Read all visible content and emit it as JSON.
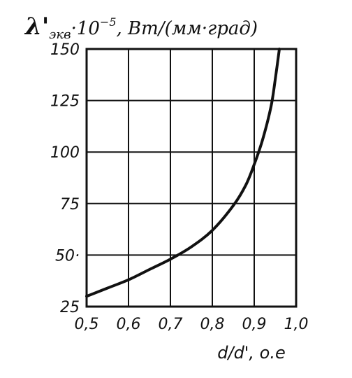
{
  "chart_data": {
    "type": "line",
    "title": {
      "symbol": "λ'",
      "subscript": "экв",
      "multiplier": "·10",
      "exponent": "−5",
      "unit": ", Вт/(мм·град)"
    },
    "xlabel": "d/d', о.е",
    "ylabel": "",
    "xlim": [
      0.5,
      1.0
    ],
    "ylim": [
      25,
      150
    ],
    "x_ticks": [
      "0,5",
      "0,6",
      "0,7",
      "0,8",
      "0,9",
      "1,0"
    ],
    "x_tick_values": [
      0.5,
      0.6,
      0.7,
      0.8,
      0.9,
      1.0
    ],
    "y_ticks": [
      "25",
      "50·",
      "75",
      "100",
      "125",
      "150"
    ],
    "y_tick_values": [
      25,
      50,
      75,
      100,
      125,
      150
    ],
    "grid": true,
    "series": [
      {
        "x": [
          0.5,
          0.55,
          0.6,
          0.65,
          0.7,
          0.75,
          0.8,
          0.85,
          0.88,
          0.9,
          0.92,
          0.94,
          0.95,
          0.96
        ],
        "y": [
          30,
          34,
          38,
          43,
          48,
          54,
          62,
          74,
          84,
          94,
          106,
          122,
          135,
          150
        ]
      }
    ]
  }
}
